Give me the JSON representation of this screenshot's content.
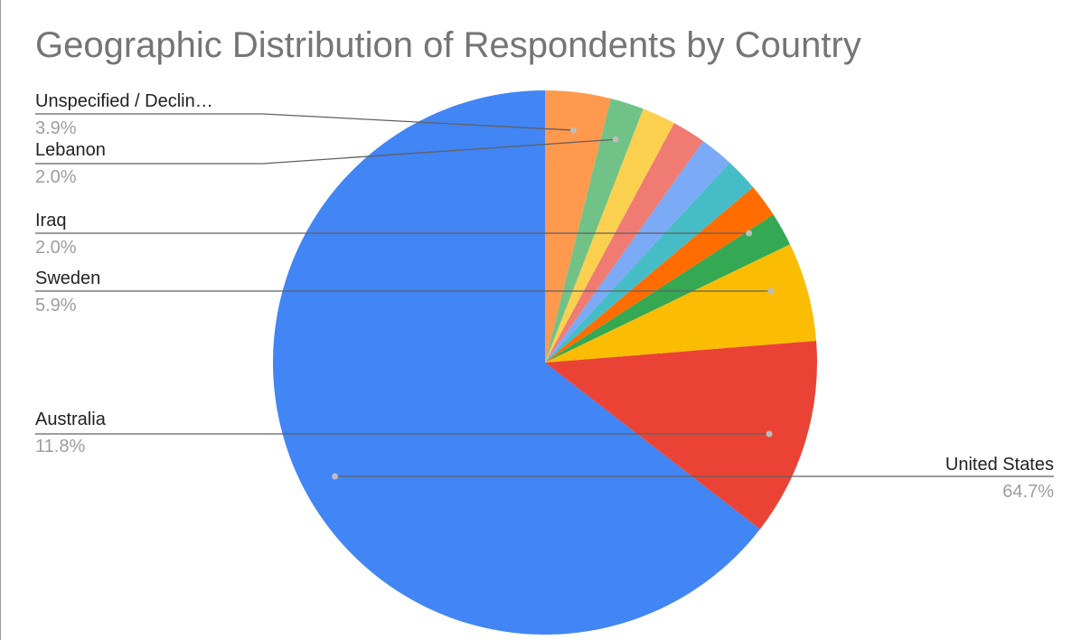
{
  "chart_data": {
    "type": "pie",
    "title": "Geographic Distribution of Respondents by Country",
    "slices": [
      {
        "label": "United States",
        "percent_label": "64.7%",
        "value": 64.7,
        "color": "#4285f4",
        "labeled": true
      },
      {
        "label": "Australia",
        "percent_label": "11.8%",
        "value": 11.8,
        "color": "#ea4335",
        "labeled": true
      },
      {
        "label": "Sweden",
        "percent_label": "5.9%",
        "value": 5.9,
        "color": "#fbbc04",
        "labeled": true
      },
      {
        "label": "Iraq",
        "percent_label": "2.0%",
        "value": 2.0,
        "color": "#34a853",
        "labeled": true
      },
      {
        "label": "",
        "percent_label": "",
        "value": 2.0,
        "color": "#ff6d01",
        "labeled": false
      },
      {
        "label": "",
        "percent_label": "",
        "value": 2.0,
        "color": "#46bdc6",
        "labeled": false
      },
      {
        "label": "",
        "percent_label": "",
        "value": 2.0,
        "color": "#7baaf7",
        "labeled": false
      },
      {
        "label": "",
        "percent_label": "",
        "value": 2.0,
        "color": "#f07b72",
        "labeled": false
      },
      {
        "label": "",
        "percent_label": "",
        "value": 2.0,
        "color": "#fcd04f",
        "labeled": false
      },
      {
        "label": "Lebanon",
        "percent_label": "2.0%",
        "value": 2.0,
        "color": "#71c287",
        "labeled": true
      },
      {
        "label": "Unspecified / Declin…",
        "percent_label": "3.9%",
        "value": 3.9,
        "color": "#ff994d",
        "labeled": true
      }
    ],
    "start_angle_deg": 0,
    "direction": "counterclockwise",
    "legend": "none (callout labels)"
  }
}
